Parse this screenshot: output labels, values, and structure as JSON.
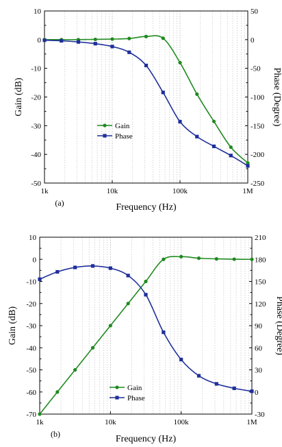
{
  "figure": {
    "panels": [
      "(a)",
      "(b)"
    ]
  },
  "chart_data": [
    {
      "type": "line",
      "panel_label": "(a)",
      "xlabel": "Frequency (Hz)",
      "ylabel_left": "Gain (dB)",
      "ylabel_right": "Phase (Degree)",
      "x_scale": "log",
      "xlim": [
        1000,
        1000000
      ],
      "x_ticks": [
        1000,
        10000,
        100000,
        1000000
      ],
      "x_tick_labels": [
        "1k",
        "10k",
        "100k",
        "1M"
      ],
      "ylim_left": [
        -50,
        10
      ],
      "y_ticks_left": [
        -50,
        -40,
        -30,
        -20,
        -10,
        0,
        10
      ],
      "y_tick_labels_left": [
        "-50",
        "-40",
        "-30",
        "-20",
        "-10",
        "0",
        "10"
      ],
      "ylim_right": [
        -250,
        50
      ],
      "y_ticks_right": [
        -250,
        -200,
        -150,
        -100,
        -50,
        0,
        50
      ],
      "y_tick_labels_right": [
        "-250",
        "-200",
        "-150",
        "-100",
        "-50",
        "0",
        "50"
      ],
      "grid": "vertical minor lines",
      "legend_position": "center-left",
      "series": [
        {
          "name": "Gain",
          "axis": "left",
          "color": "#1f8a1f",
          "marker": "circle",
          "x": [
            1000,
            1778,
            3162,
            5623,
            10000,
            17783,
            31623,
            56234,
            100000,
            177828,
            316228,
            562341,
            1000000
          ],
          "y": [
            0,
            0,
            0,
            0.1,
            0.2,
            0.4,
            1.1,
            0.5,
            -8,
            -19,
            -28.5,
            -37.5,
            -43
          ]
        },
        {
          "name": "Phase",
          "axis": "right",
          "color": "#1f2f9a",
          "marker": "square",
          "x": [
            1000,
            1778,
            3162,
            5623,
            10000,
            17783,
            31623,
            56234,
            100000,
            177828,
            316228,
            562341,
            1000000
          ],
          "y": [
            -1,
            -2,
            -4,
            -7,
            -12,
            -22,
            -45,
            -92,
            -143,
            -169,
            -186,
            -202,
            -220
          ]
        }
      ]
    },
    {
      "type": "line",
      "panel_label": "(b)",
      "xlabel": "Frequency (Hz)",
      "ylabel_left": "Gain (dB)",
      "ylabel_right": "Phase (Degree)",
      "x_scale": "log",
      "xlim": [
        1000,
        1000000
      ],
      "x_ticks": [
        1000,
        10000,
        100000,
        1000000
      ],
      "x_tick_labels": [
        "1k",
        "10k",
        "100k",
        "1M"
      ],
      "ylim_left": [
        -70,
        10
      ],
      "y_ticks_left": [
        -70,
        -60,
        -50,
        -40,
        -30,
        -20,
        -10,
        0,
        10
      ],
      "y_tick_labels_left": [
        "-70",
        "-60",
        "-50",
        "-40",
        "-30",
        "-20",
        "-10",
        "0",
        "10"
      ],
      "ylim_right": [
        -30,
        210
      ],
      "y_ticks_right": [
        -30,
        0,
        30,
        60,
        90,
        120,
        150,
        180,
        210
      ],
      "y_tick_labels_right": [
        "-30",
        "0",
        "30",
        "60",
        "90",
        "120",
        "150",
        "180",
        "210"
      ],
      "grid": "vertical minor lines",
      "legend_position": "bottom-center",
      "series": [
        {
          "name": "Gain",
          "axis": "left",
          "color": "#1f8a1f",
          "marker": "circle",
          "x": [
            1000,
            1778,
            3162,
            5623,
            10000,
            17783,
            31623,
            56234,
            100000,
            177828,
            316228,
            562341,
            1000000
          ],
          "y": [
            -70,
            -60,
            -50,
            -40,
            -30,
            -20,
            -10,
            0,
            1.2,
            0.5,
            0.2,
            0.05,
            0
          ]
        },
        {
          "name": "Phase",
          "axis": "right",
          "color": "#1f2f9a",
          "marker": "square",
          "x": [
            1000,
            1778,
            3162,
            5623,
            10000,
            17783,
            31623,
            56234,
            100000,
            177828,
            316228,
            562341,
            1000000
          ],
          "y": [
            153,
            163,
            169,
            171,
            168,
            158,
            132,
            81,
            44,
            22,
            11,
            5,
            1
          ]
        }
      ]
    }
  ]
}
